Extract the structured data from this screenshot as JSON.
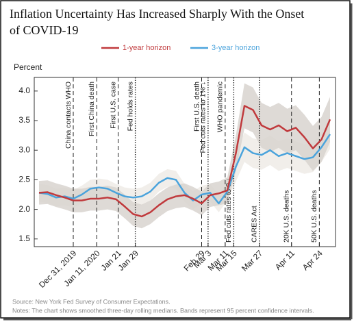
{
  "chart_data": {
    "type": "line",
    "title": [
      "Inflation Uncertainty Has Increased Sharply With the Onset",
      "of COVID-19"
    ],
    "y_label": "Percent",
    "source": "Source: New York Fed Survey of Consumer Expectations.",
    "notes": "Notes: The chart shows smoothed three-day rolling medians. Bands represent 95 percent confidence intervals.",
    "x": [
      "2019-12-15",
      "2019-12-19",
      "2019-12-23",
      "2019-12-27",
      "2019-12-31",
      "2020-01-04",
      "2020-01-08",
      "2020-01-12",
      "2020-01-16",
      "2020-01-20",
      "2020-01-24",
      "2020-01-28",
      "2020-02-01",
      "2020-02-05",
      "2020-02-09",
      "2020-02-13",
      "2020-02-17",
      "2020-02-21",
      "2020-02-25",
      "2020-02-29",
      "2020-03-04",
      "2020-03-08",
      "2020-03-12",
      "2020-03-16",
      "2020-03-20",
      "2020-03-24",
      "2020-03-28",
      "2020-04-01",
      "2020-04-05",
      "2020-04-09",
      "2020-04-13",
      "2020-04-17",
      "2020-04-21",
      "2020-04-25",
      "2020-04-29"
    ],
    "series": [
      {
        "name": "1-year horizon",
        "color": "#c0393c",
        "band_color": "#d8d4cf",
        "values": [
          2.28,
          2.29,
          2.24,
          2.2,
          2.15,
          2.15,
          2.18,
          2.18,
          2.2,
          2.17,
          2.05,
          1.92,
          1.88,
          1.95,
          2.07,
          2.17,
          2.22,
          2.24,
          2.18,
          2.1,
          2.24,
          2.27,
          2.32,
          2.95,
          3.75,
          3.68,
          3.42,
          3.35,
          3.42,
          3.32,
          3.38,
          3.22,
          3.03,
          3.18,
          3.52
        ],
        "band_upper": [
          2.48,
          2.49,
          2.44,
          2.4,
          2.35,
          2.35,
          2.38,
          2.38,
          2.4,
          2.37,
          2.25,
          2.12,
          2.08,
          2.15,
          2.27,
          2.37,
          2.42,
          2.44,
          2.38,
          2.3,
          2.44,
          2.47,
          2.54,
          3.25,
          4.13,
          4.06,
          3.8,
          3.73,
          3.8,
          3.7,
          3.76,
          3.6,
          3.41,
          3.56,
          3.9
        ],
        "band_lower": [
          2.08,
          2.09,
          2.04,
          2.0,
          1.95,
          1.95,
          1.98,
          1.98,
          2.0,
          1.97,
          1.85,
          1.72,
          1.68,
          1.75,
          1.87,
          1.97,
          2.02,
          2.04,
          1.98,
          1.9,
          2.04,
          2.07,
          2.1,
          2.65,
          3.37,
          3.3,
          3.04,
          2.97,
          3.04,
          2.94,
          3.0,
          2.84,
          2.65,
          2.8,
          3.14
        ]
      },
      {
        "name": "3-year horizon",
        "color": "#4aa3dc",
        "band_color": "#eeebe6",
        "values": [
          2.28,
          2.26,
          2.2,
          2.22,
          2.18,
          2.25,
          2.35,
          2.37,
          2.35,
          2.28,
          2.22,
          2.2,
          2.22,
          2.3,
          2.45,
          2.53,
          2.5,
          2.28,
          2.15,
          2.25,
          2.28,
          2.1,
          2.3,
          2.72,
          3.05,
          2.95,
          2.92,
          3.0,
          2.9,
          2.95,
          2.9,
          2.85,
          2.88,
          3.05,
          3.27
        ],
        "band_upper": [
          2.43,
          2.41,
          2.35,
          2.37,
          2.33,
          2.4,
          2.5,
          2.52,
          2.5,
          2.43,
          2.37,
          2.35,
          2.37,
          2.45,
          2.6,
          2.68,
          2.65,
          2.43,
          2.3,
          2.4,
          2.43,
          2.25,
          2.45,
          2.97,
          3.3,
          3.2,
          3.17,
          3.25,
          3.15,
          3.2,
          3.15,
          3.1,
          3.13,
          3.3,
          3.52
        ],
        "band_lower": [
          2.13,
          2.11,
          2.05,
          2.07,
          2.03,
          2.1,
          2.2,
          2.22,
          2.2,
          2.13,
          2.07,
          2.05,
          2.07,
          2.15,
          2.3,
          2.38,
          2.35,
          2.13,
          2.0,
          2.1,
          2.13,
          1.95,
          2.15,
          2.47,
          2.8,
          2.7,
          2.67,
          2.75,
          2.65,
          2.7,
          2.65,
          2.6,
          2.63,
          2.8,
          3.02
        ]
      }
    ],
    "xlim": [
      "2019-12-15",
      "2020-04-29"
    ],
    "xticks": [
      {
        "value": "2019-12-31",
        "label": "Dec 31, 2019"
      },
      {
        "value": "2020-01-11",
        "label": "Jan 11, 2020"
      },
      {
        "value": "2020-01-21",
        "label": "Jan 21"
      },
      {
        "value": "2020-01-29",
        "label": "Jan 29"
      },
      {
        "value": "2020-02-29",
        "label": "Feb 29"
      },
      {
        "value": "2020-03-03",
        "label": "Mar 3"
      },
      {
        "value": "2020-03-11",
        "label": "Mar 11"
      },
      {
        "value": "2020-03-15",
        "label": "Mar 15"
      },
      {
        "value": "2020-03-27",
        "label": "Mar 27"
      },
      {
        "value": "2020-04-11",
        "label": "Apr 11"
      },
      {
        "value": "2020-04-24",
        "label": "Apr 24"
      }
    ],
    "ylim": [
      1.37,
      4.23
    ],
    "yticks": [
      {
        "value": 4,
        "label": "4.0"
      },
      3.5,
      {
        "value": 3,
        "label": "3.0"
      },
      2.5,
      {
        "value": 2,
        "label": "2.0"
      },
      1.5
    ],
    "annotations": [
      {
        "date": "2019-12-31",
        "label": "China contacts WHO",
        "style": "dashed",
        "side": "top"
      },
      {
        "date": "2020-01-11",
        "label": "First China death",
        "style": "dashed",
        "side": "top"
      },
      {
        "date": "2020-01-21",
        "label": "First U.S. case",
        "style": "dashed",
        "side": "top"
      },
      {
        "date": "2020-01-29",
        "label": "Fed holds rates",
        "style": "dotted",
        "side": "top"
      },
      {
        "date": "2020-02-29",
        "label": "First U.S. death",
        "style": "dashed",
        "side": "top"
      },
      {
        "date": "2020-03-03",
        "label": "Fed cuts rates to 1% ↓",
        "style": "dotted",
        "side": "top"
      },
      {
        "date": "2020-03-11",
        "label": "WHO pandemic",
        "style": "dashed",
        "side": "top"
      },
      {
        "date": "2020-03-15",
        "label": "Fed cuts rates to 0 ↓",
        "style": "dotted",
        "side": "bottom"
      },
      {
        "date": "2020-03-27",
        "label": "CARES Act",
        "style": "dotted",
        "side": "bottom"
      },
      {
        "date": "2020-04-11",
        "label": "20K U.S. deaths",
        "style": "dashed",
        "side": "bottom"
      },
      {
        "date": "2020-04-24",
        "label": "50K U.S. deaths",
        "style": "dashed",
        "side": "bottom"
      }
    ]
  }
}
